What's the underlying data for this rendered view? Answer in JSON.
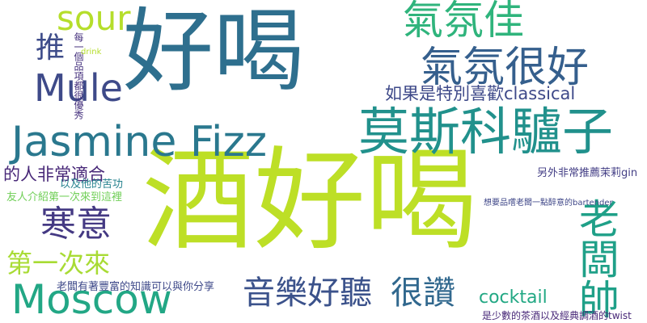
{
  "cloud": {
    "words": [
      {
        "text": "酒好喝",
        "color": "#bddf26"
      },
      {
        "text": "好喝",
        "color": "#2e6f8e"
      },
      {
        "text": "Jasmine Fizz",
        "color": "#2a788e"
      },
      {
        "text": "莫斯科驢子",
        "color": "#21918c"
      },
      {
        "text": "氣氛很好",
        "color": "#355f8d"
      },
      {
        "text": "氣氛佳",
        "color": "#2fb47c"
      },
      {
        "text": "Moscow",
        "color": "#22a785"
      },
      {
        "text": "Mule",
        "color": "#3e4a89"
      },
      {
        "text": "sour",
        "color": "#b5de2b"
      },
      {
        "text": "寒意",
        "color": "#443983"
      },
      {
        "text": "老闆帥",
        "color": "#1fa088"
      },
      {
        "text": "音樂好聽",
        "color": "#3b528b"
      },
      {
        "text": "很讚",
        "color": "#31688e"
      },
      {
        "text": "第一次來",
        "color": "#a8db34"
      },
      {
        "text": "推",
        "color": "#3e4c8a"
      },
      {
        "text": "如果是特別喜歡classical",
        "color": "#3e4989"
      },
      {
        "text": "的人非常適合",
        "color": "#482878"
      },
      {
        "text": "cocktail",
        "color": "#22a884"
      },
      {
        "text": "老闆有著豐富的知識可以與你分享",
        "color": "#3e4989"
      },
      {
        "text": "每一個品項都很優秀",
        "color": "#46327e"
      },
      {
        "text": "友人介紹第一次來到這裡",
        "color": "#70cf57"
      },
      {
        "text": "另外非常推薦茉莉gin",
        "color": "#433e85"
      },
      {
        "text": "是少數的茶酒以及經典調酒的twist",
        "color": "#482878"
      },
      {
        "text": "以及他的苦功",
        "color": "#26828e"
      },
      {
        "text": "想要品嚐老闆一點醉意的bartender",
        "color": "#3f4788"
      },
      {
        "text": "drink",
        "color": "#b5de2b"
      }
    ]
  }
}
